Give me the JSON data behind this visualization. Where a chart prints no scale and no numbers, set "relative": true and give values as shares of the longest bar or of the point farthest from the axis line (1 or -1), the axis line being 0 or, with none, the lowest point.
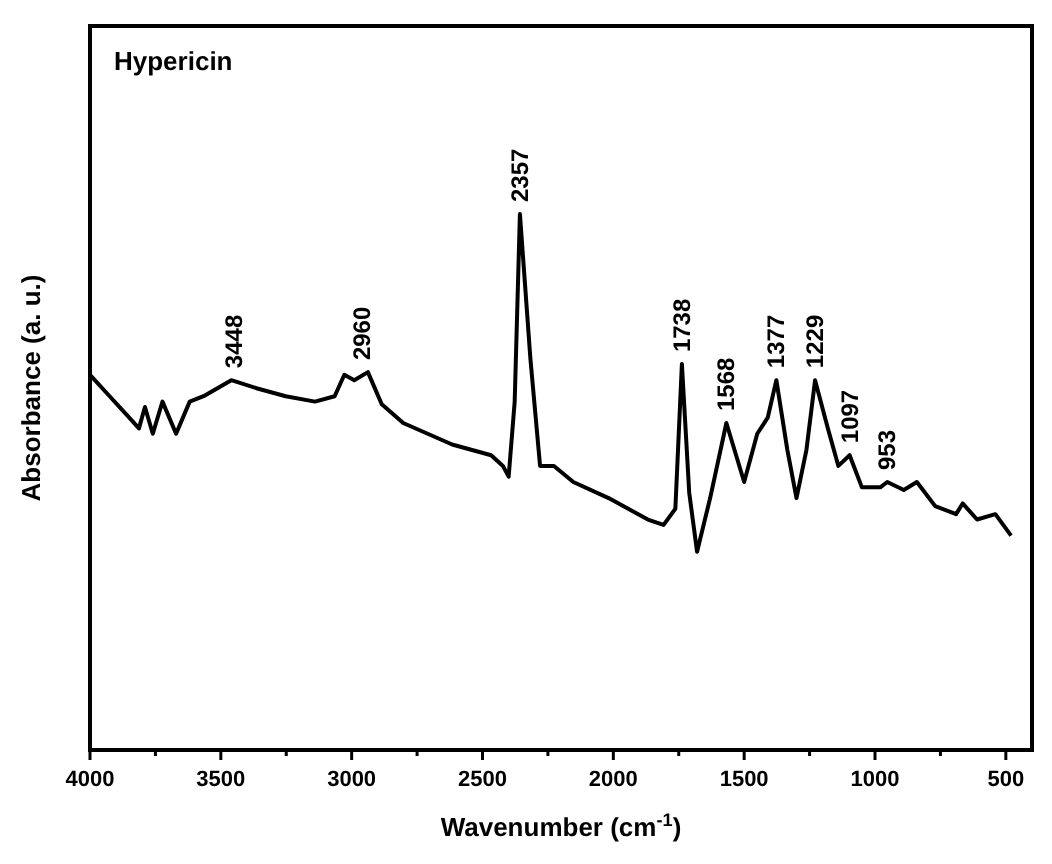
{
  "chart_data": {
    "type": "line",
    "title": "Hypericin",
    "xlabel": "Wavenumber (cm$^{-1}$)",
    "ylabel": "Absorbance (a. u.)",
    "relative": true,
    "x": [
      4000,
      3925,
      3850,
      3813,
      3790,
      3760,
      3723,
      3671,
      3619,
      3566,
      3460,
      3364,
      3252,
      3140,
      3065,
      3028,
      2990,
      2938,
      2885,
      2803,
      2616,
      2467,
      2422,
      2400,
      2377,
      2357,
      2317,
      2280,
      2227,
      2153,
      2018,
      1868,
      1808,
      1763,
      1738,
      1710,
      1680,
      1630,
      1568,
      1500,
      1450,
      1410,
      1377,
      1335,
      1300,
      1262,
      1229,
      1180,
      1140,
      1097,
      1050,
      980,
      953,
      890,
      840,
      770,
      690,
      665,
      610,
      540,
      480
    ],
    "series": [
      {
        "color": "#000000",
        "values": [
          0.7,
          0.66,
          0.62,
          0.6,
          0.64,
          0.59,
          0.65,
          0.59,
          0.65,
          0.66,
          0.69,
          0.675,
          0.66,
          0.65,
          0.66,
          0.7,
          0.69,
          0.705,
          0.645,
          0.61,
          0.57,
          0.55,
          0.53,
          0.51,
          0.65,
          1.0,
          0.73,
          0.53,
          0.53,
          0.5,
          0.47,
          0.43,
          0.42,
          0.45,
          0.72,
          0.48,
          0.37,
          0.47,
          0.61,
          0.5,
          0.59,
          0.62,
          0.69,
          0.56,
          0.47,
          0.56,
          0.69,
          0.6,
          0.53,
          0.55,
          0.49,
          0.49,
          0.5,
          0.485,
          0.5,
          0.455,
          0.44,
          0.46,
          0.43,
          0.44,
          0.4
        ]
      }
    ],
    "xlim": [
      4000,
      400
    ],
    "xticks": [
      4000,
      {
        "value": 3750,
        "label": null
      },
      3500,
      {
        "value": 3250,
        "label": null
      },
      3000,
      {
        "value": 2750,
        "label": null
      },
      2500,
      {
        "value": 2250,
        "label": null
      },
      2000,
      {
        "value": 1750,
        "label": null
      },
      1500,
      {
        "value": 1250,
        "label": null
      },
      1000,
      {
        "value": 750,
        "label": null
      },
      500
    ],
    "annotations": [
      {
        "text": "3448",
        "x": 3448,
        "y": 0.69
      },
      {
        "text": "2960",
        "x": 2960,
        "y": 0.705
      },
      {
        "text": "2357",
        "x": 2357,
        "y": 1.0
      },
      {
        "text": "1738",
        "x": 1738,
        "y": 0.72
      },
      {
        "text": "1568",
        "x": 1568,
        "y": 0.61
      },
      {
        "text": "1377",
        "x": 1377,
        "y": 0.69
      },
      {
        "text": "1229",
        "x": 1229,
        "y": 0.69
      },
      {
        "text": "1097",
        "x": 1097,
        "y": 0.55
      },
      {
        "text": "953",
        "x": 953,
        "y": 0.5
      }
    ],
    "grid": false
  }
}
